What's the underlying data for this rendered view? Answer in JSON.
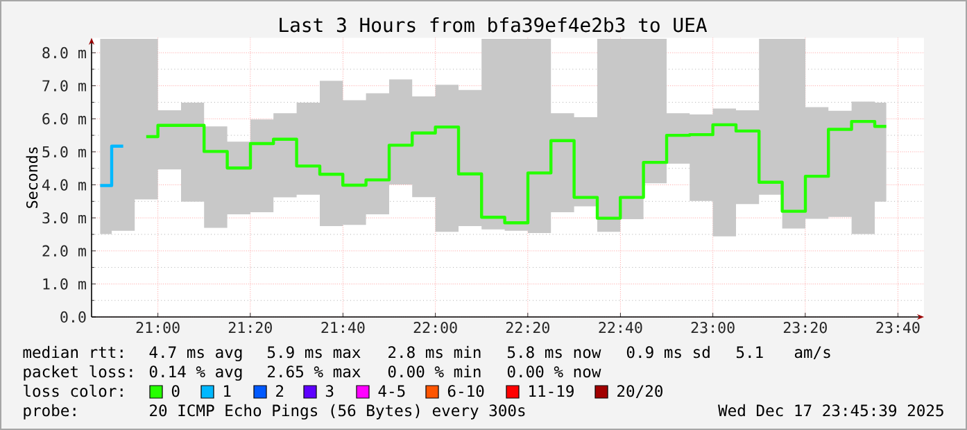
{
  "chart_data": {
    "type": "step",
    "title": "Last 3 Hours from bfa39ef4e2b3 to UEA",
    "ylabel": "Seconds",
    "x": [
      20.792,
      20.875,
      20.958,
      21.042,
      21.125,
      21.208,
      21.292,
      21.375,
      21.458,
      21.542,
      21.625,
      21.708,
      21.792,
      21.875,
      21.958,
      22.042,
      22.125,
      22.208,
      22.292,
      22.375,
      22.458,
      22.542,
      22.625,
      22.708,
      22.792,
      22.875,
      22.958,
      23.042,
      23.125,
      23.208,
      23.292,
      23.375,
      23.458,
      23.542,
      23.625
    ],
    "series": [
      {
        "color": "#26ff00",
        "values": [
          null,
          null,
          5.46,
          5.8,
          5.8,
          5.01,
          4.51,
          5.25,
          5.38,
          4.57,
          4.32,
          3.99,
          4.15,
          5.2,
          5.57,
          5.75,
          4.33,
          3.02,
          2.85,
          4.36,
          5.34,
          3.62,
          2.99,
          3.62,
          4.68,
          5.5,
          5.52,
          5.82,
          5.63,
          4.08,
          3.2,
          4.26,
          5.68,
          5.92,
          5.77
        ],
        "lower": [
          2.51,
          2.61,
          3.56,
          4.47,
          3.49,
          2.7,
          3.11,
          3.17,
          3.62,
          3.7,
          2.75,
          2.79,
          3.11,
          4.01,
          3.63,
          2.58,
          2.75,
          2.65,
          2.61,
          2.54,
          3.17,
          3.35,
          2.58,
          2.96,
          4.05,
          4.64,
          3.51,
          2.44,
          3.42,
          3.7,
          2.68,
          2.97,
          3.03,
          2.51,
          3.49
        ],
        "upper": [
          8.42,
          8.42,
          8.42,
          6.26,
          6.49,
          5.77,
          5.31,
          5.98,
          6.17,
          6.49,
          7.15,
          6.56,
          6.77,
          7.19,
          6.68,
          7.03,
          6.87,
          8.42,
          8.42,
          8.42,
          6.17,
          6.05,
          8.42,
          8.42,
          8.42,
          6.17,
          6.13,
          6.31,
          6.26,
          8.42,
          8.42,
          6.35,
          6.24,
          6.52,
          6.49
        ]
      },
      {
        "color": "#00b8ff",
        "values": [
          3.98,
          5.17,
          null,
          null,
          null,
          null,
          null,
          null,
          null,
          null,
          null,
          null,
          null,
          null,
          null,
          null,
          null,
          null,
          null,
          null,
          null,
          null,
          null,
          null,
          null,
          null,
          null,
          null,
          null,
          null,
          null,
          null,
          null,
          null,
          null
        ]
      }
    ],
    "xlim": [
      20.761,
      23.761
    ],
    "ylim": [
      0,
      8.45
    ],
    "xticks": [
      {
        "value": 21.0,
        "label": "21:00"
      },
      {
        "value": 21.333,
        "label": "21:20"
      },
      {
        "value": 21.667,
        "label": "21:40"
      },
      {
        "value": 22.0,
        "label": "22:00"
      },
      {
        "value": 22.333,
        "label": "22:20"
      },
      {
        "value": 22.667,
        "label": "22:40"
      },
      {
        "value": 23.0,
        "label": "23:00"
      },
      {
        "value": 23.333,
        "label": "23:20"
      },
      {
        "value": 23.667,
        "label": "23:40"
      }
    ],
    "yticks": [
      {
        "value": 0,
        "label": "0.0"
      },
      {
        "value": 1,
        "label": "1.0 m"
      },
      {
        "value": 2,
        "label": "2.0 m"
      },
      {
        "value": 3,
        "label": "3.0 m"
      },
      {
        "value": 4,
        "label": "4.0 m"
      },
      {
        "value": 5,
        "label": "5.0 m"
      },
      {
        "value": 6,
        "label": "6.0 m"
      },
      {
        "value": 7,
        "label": "7.0 m"
      },
      {
        "value": 8,
        "label": "8.0 m"
      }
    ],
    "grid": true,
    "annotations": [
      "median rtt:",
      "4.7 ms avg",
      "5.9 ms max",
      "2.8 ms min",
      "5.8 ms now",
      "0.9 ms sd",
      "5.1",
      "am/s",
      "packet loss:",
      "0.14 % avg",
      "2.65 % max",
      "0.00 % min",
      "0.00 % now",
      "loss color:",
      "0",
      "1",
      "2",
      "3",
      "4-5",
      "6-10",
      "11-19",
      "20/20",
      "probe:",
      "20 ICMP Echo Pings (56 Bytes) every 300s",
      "Wed Dec 17 23:45:39 2025"
    ]
  }
}
